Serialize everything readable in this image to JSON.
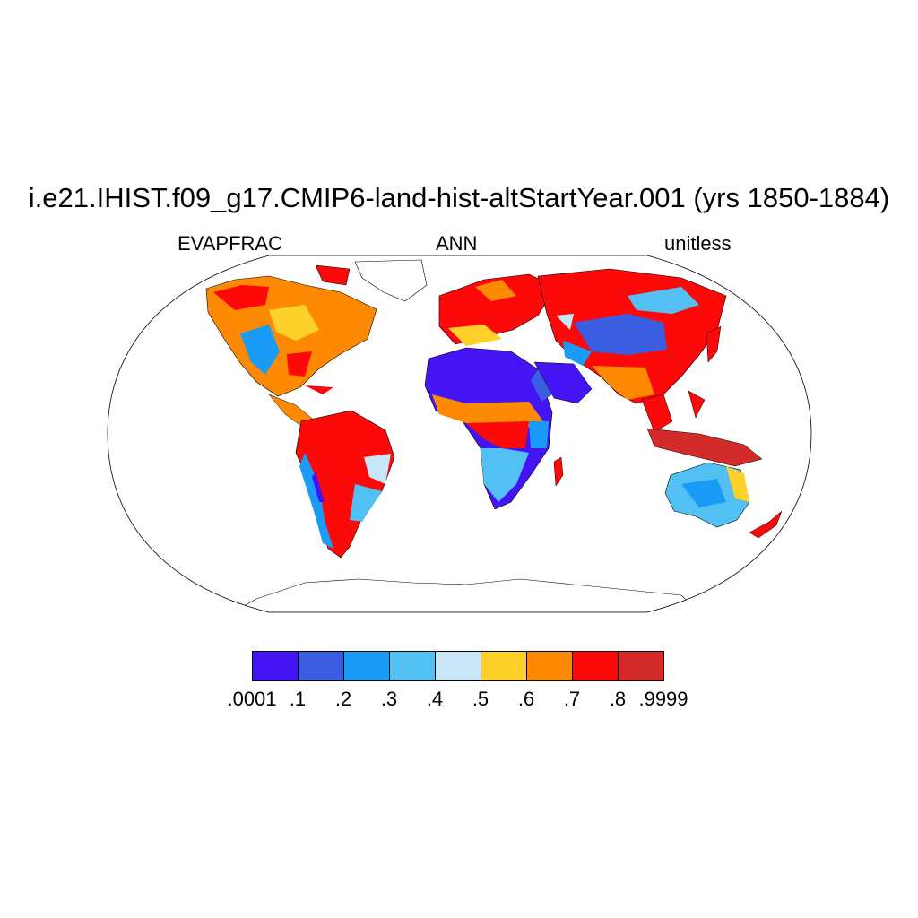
{
  "title": "i.e21.IHIST.f09_g17.CMIP6-land-hist-altStartYear.001 (yrs 1850-1884)",
  "subtitle_left": "EVAPFRAC",
  "subtitle_center": "ANN",
  "subtitle_right": "unitless",
  "colorbar": {
    "colors": [
      "#4414f5",
      "#3b5ee0",
      "#1a9bf5",
      "#52c0f3",
      "#c8e6f5",
      "#fed12a",
      "#fd8a02",
      "#fe0909",
      "#d32a2a"
    ],
    "labels": [
      ".0001",
      ".1",
      ".2",
      ".3",
      ".4",
      ".5",
      ".6",
      ".7",
      ".8",
      ".9999"
    ]
  }
}
